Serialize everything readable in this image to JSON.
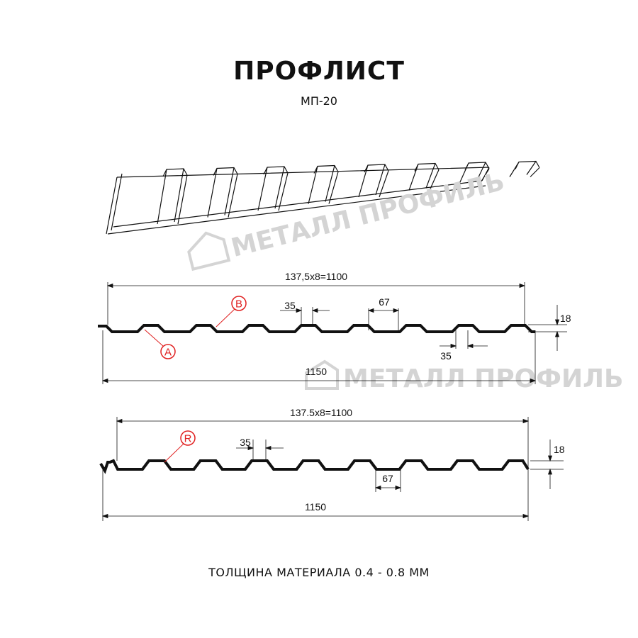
{
  "header": {
    "title": "ПРОФЛИСТ",
    "model": "МП-20"
  },
  "watermark": {
    "text": "МЕТАЛЛ ПРОФИЛЬ"
  },
  "profile_a": {
    "pitch_label": "137,5x8=1100",
    "total_width_label": "1150",
    "top_width_label": "35",
    "bottom_width_label": "35",
    "trough_width_label": "67",
    "height_label": "18",
    "marker_a": "A",
    "marker_b": "B"
  },
  "profile_r": {
    "pitch_label": "137.5x8=1100",
    "total_width_label": "1150",
    "top_width_label": "35",
    "trough_width_label": "67",
    "height_label": "18",
    "marker_r": "R"
  },
  "footer": {
    "thickness": "ТОЛЩИНА МАТЕРИАЛА 0.4 - 0.8 ММ"
  },
  "colors": {
    "line": "#111111",
    "marker": "#e02020",
    "watermark": "#d4d4d4"
  }
}
